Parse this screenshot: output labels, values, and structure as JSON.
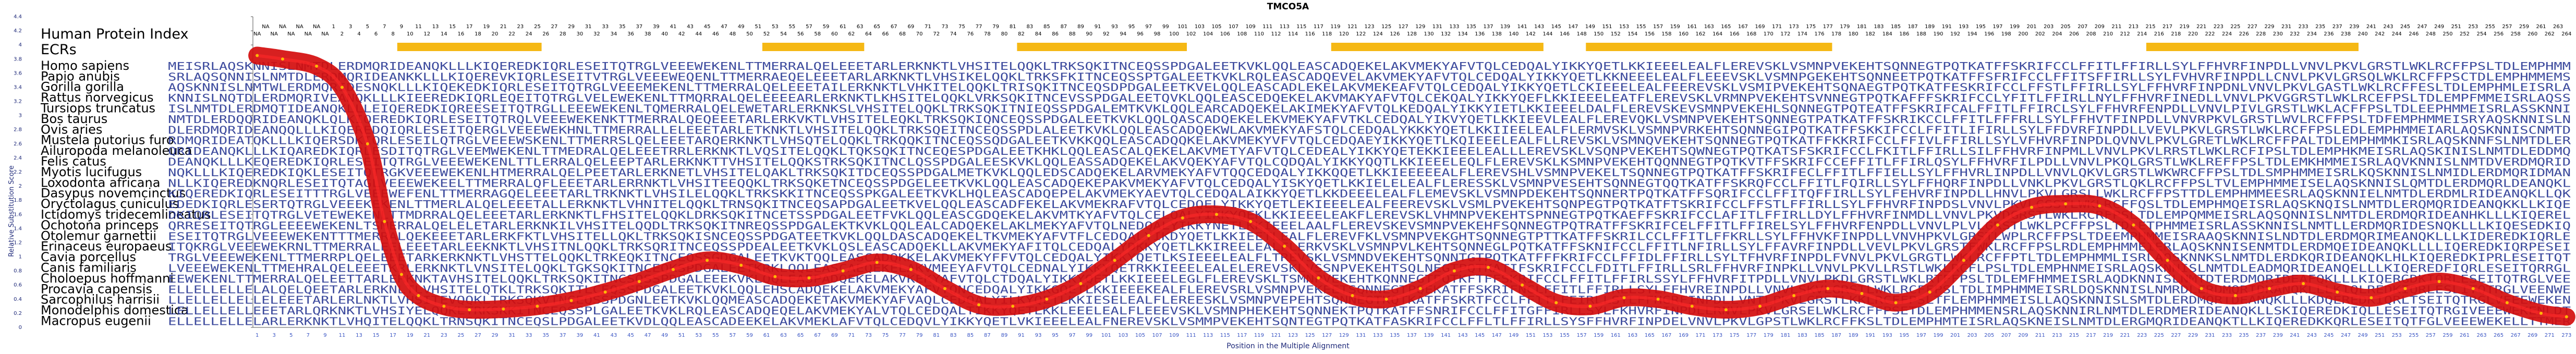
{
  "chart_data": {
    "type": "line",
    "title": "TMCO5A",
    "xlabel": "Position in the Multiple Alignment",
    "ylabel": "Relative Substitution Score",
    "xlim": [
      1,
      273
    ],
    "ylim": [
      0,
      4.4
    ],
    "yticks": [
      0,
      0.2,
      0.4,
      0.6,
      0.8,
      1,
      1.2,
      1.4,
      1.6,
      1.8,
      2,
      2.2,
      2.4,
      2.6,
      2.8,
      3,
      3.2,
      3.4,
      3.6,
      3.8,
      4,
      4.2,
      4.4
    ],
    "grid": false,
    "legend_title": "Human Protein Index",
    "ecr_label": "ECRs",
    "species": [
      "Homo sapiens",
      "Papio anubis",
      "Gorilla gorilla",
      "Rattus norvegicus",
      "Tursiops truncatus",
      "Bos taurus",
      "Ovis aries",
      "Mustela putorius furo",
      "Ailuropoda melanoleuca",
      "Felis catus",
      "Myotis lucifugus",
      "Loxodonta africana",
      "Dasypus novemcinctus",
      "Oryctolagus cuniculus",
      "Ictidomys tridecemlineatus",
      "Ochotona princeps",
      "Otolemur garnettii",
      "Erinaceus europaeus",
      "Cavia porcellus",
      "Canis familiaris",
      "Choloepus hoffmanni",
      "Procavia capensis",
      "Sarcophilus harrisii",
      "Monodelphis domestica",
      "Macropus eugenii"
    ],
    "human_index_leading_na": 9,
    "human_index_max": 265,
    "ecr_regions": [
      [
        18,
        34
      ],
      [
        61,
        72
      ],
      [
        91,
        110
      ],
      [
        128,
        152
      ],
      [
        158,
        186
      ],
      [
        224,
        248
      ]
    ],
    "series": [
      {
        "x": [
          1,
          4,
          8,
          11,
          14,
          16,
          18,
          20,
          23,
          26,
          30,
          34,
          38,
          42,
          46,
          50,
          54,
          58,
          62,
          66,
          70,
          74,
          78,
          82,
          86,
          90,
          94,
          98,
          102,
          106,
          110,
          114,
          118,
          122,
          126,
          130,
          134,
          138,
          142,
          146,
          150,
          154,
          158,
          162,
          166,
          170,
          174,
          178,
          182,
          186,
          190,
          194,
          198,
          202,
          206,
          210,
          214,
          218,
          222,
          226,
          230,
          234,
          238,
          242,
          246,
          250,
          254,
          258,
          262,
          266,
          270,
          273
        ],
        "values": [
          3.85,
          3.8,
          3.7,
          3.4,
          2.6,
          1.5,
          0.75,
          0.45,
          0.3,
          0.25,
          0.26,
          0.3,
          0.38,
          0.5,
          0.65,
          0.82,
          0.95,
          0.88,
          0.72,
          0.7,
          0.8,
          0.92,
          0.82,
          0.55,
          0.32,
          0.3,
          0.4,
          0.62,
          0.95,
          1.3,
          1.55,
          1.6,
          1.5,
          1.15,
          0.7,
          0.45,
          0.4,
          0.55,
          0.8,
          0.85,
          0.6,
          0.35,
          0.3,
          0.42,
          0.4,
          0.3,
          0.25,
          0.3,
          0.45,
          0.55,
          0.48,
          0.35,
          0.5,
          0.95,
          1.45,
          1.7,
          1.75,
          1.72,
          1.45,
          0.95,
          0.55,
          0.45,
          0.55,
          0.62,
          0.5,
          0.42,
          0.55,
          0.65,
          0.55,
          0.35,
          0.2,
          0.15
        ]
      }
    ]
  }
}
